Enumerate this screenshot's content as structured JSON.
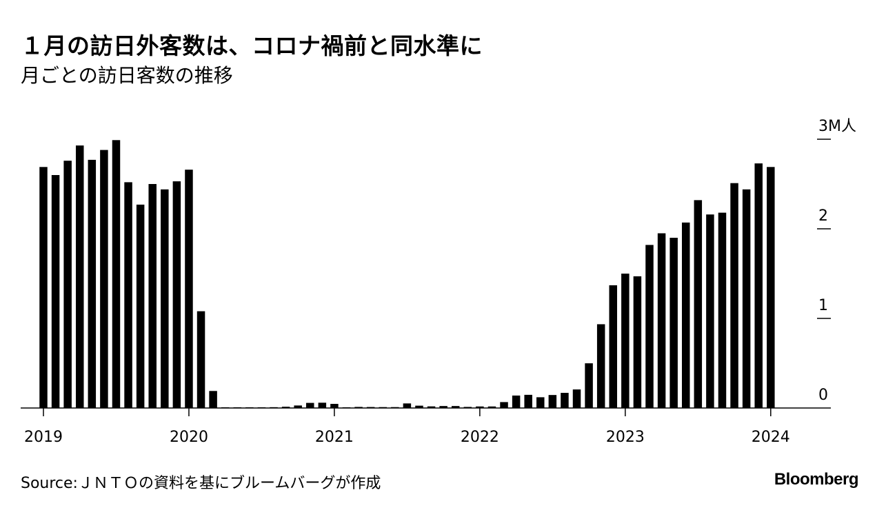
{
  "header": {
    "title": "１月の訪日外客数は、コロナ禍前と同水準に",
    "subtitle": "月ごとの訪日客数の推移"
  },
  "footer": {
    "source": "Source:ＪＮＴＯの資料を基にブルームバーグが作成",
    "brand": "Bloomberg"
  },
  "chart_data": {
    "type": "bar",
    "title": "１月の訪日外客数は、コロナ禍前と同水準に",
    "subtitle": "月ごとの訪日客数の推移",
    "ylabel": "3M人",
    "unit": "million people",
    "ylim": [
      0,
      3
    ],
    "yticks": [
      0,
      1,
      2,
      3
    ],
    "ytick_labels": [
      "0",
      "1",
      "2",
      "3M人"
    ],
    "y_axis_position": "right",
    "x_tick_labels": [
      "2019",
      "2020",
      "2021",
      "2022",
      "2023",
      "2024"
    ],
    "categories": [
      "2019-01",
      "2019-02",
      "2019-03",
      "2019-04",
      "2019-05",
      "2019-06",
      "2019-07",
      "2019-08",
      "2019-09",
      "2019-10",
      "2019-11",
      "2019-12",
      "2020-01",
      "2020-02",
      "2020-03",
      "2020-04",
      "2020-05",
      "2020-06",
      "2020-07",
      "2020-08",
      "2020-09",
      "2020-10",
      "2020-11",
      "2020-12",
      "2021-01",
      "2021-02",
      "2021-03",
      "2021-04",
      "2021-05",
      "2021-06",
      "2021-07",
      "2021-08",
      "2021-09",
      "2021-10",
      "2021-11",
      "2021-12",
      "2022-01",
      "2022-02",
      "2022-03",
      "2022-04",
      "2022-05",
      "2022-06",
      "2022-07",
      "2022-08",
      "2022-09",
      "2022-10",
      "2022-11",
      "2022-12",
      "2023-01",
      "2023-02",
      "2023-03",
      "2023-04",
      "2023-05",
      "2023-06",
      "2023-07",
      "2023-08",
      "2023-09",
      "2023-10",
      "2023-11",
      "2023-12",
      "2024-01"
    ],
    "values": [
      2.69,
      2.6,
      2.76,
      2.93,
      2.77,
      2.88,
      2.99,
      2.52,
      2.27,
      2.5,
      2.44,
      2.53,
      2.66,
      1.08,
      0.19,
      0.003,
      0.002,
      0.003,
      0.004,
      0.009,
      0.014,
      0.028,
      0.057,
      0.059,
      0.046,
      0.007,
      0.012,
      0.011,
      0.01,
      0.01,
      0.051,
      0.026,
      0.018,
      0.022,
      0.022,
      0.012,
      0.017,
      0.017,
      0.066,
      0.139,
      0.147,
      0.12,
      0.145,
      0.169,
      0.207,
      0.499,
      0.935,
      1.37,
      1.5,
      1.47,
      1.82,
      1.95,
      1.9,
      2.07,
      2.32,
      2.16,
      2.18,
      2.51,
      2.44,
      2.73,
      2.69
    ]
  }
}
